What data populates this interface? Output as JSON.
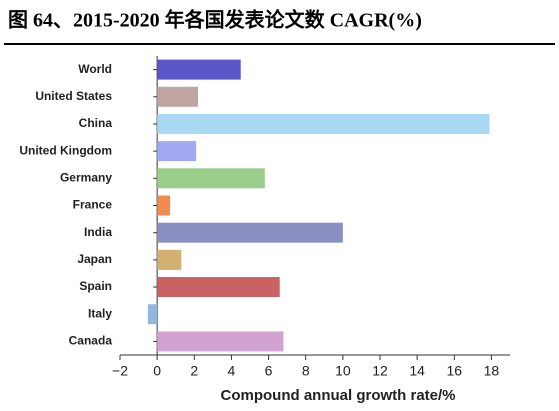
{
  "chart_data": {
    "type": "hbar",
    "title": "图 64、2015-2020 年各国发表论文数 CAGR(%)",
    "x_label": "Compound annual growth rate/%",
    "categories": [
      "World",
      "United States",
      "China",
      "United Kingdom",
      "Germany",
      "France",
      "India",
      "Japan",
      "Spain",
      "Italy",
      "Canada"
    ],
    "values": [
      4.5,
      2.2,
      17.9,
      2.1,
      5.8,
      0.7,
      10.0,
      1.3,
      6.6,
      -0.5,
      6.8
    ],
    "colors": [
      "#5c57c9",
      "#bfa4a1",
      "#a9d9f2",
      "#a0a9f2",
      "#9bcd8b",
      "#f28b50",
      "#8a91c2",
      "#d2b172",
      "#c96262",
      "#92b9d9",
      "#d2a2d2"
    ],
    "xlim": [
      -2,
      19
    ],
    "xticks": [
      {
        "value": -2,
        "label": "−2"
      },
      0,
      2,
      4,
      6,
      8,
      10,
      12,
      14,
      16,
      18
    ]
  }
}
